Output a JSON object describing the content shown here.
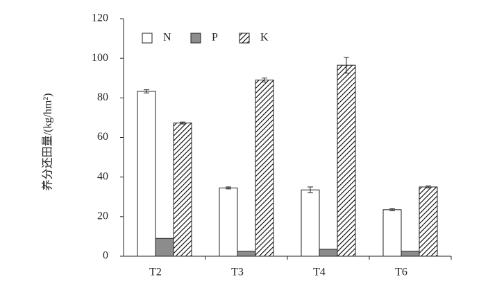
{
  "chart_data": {
    "type": "bar",
    "y_label": "养分还田量/(kg/hm²)",
    "categories": [
      "T2",
      "T3",
      "T4",
      "T6"
    ],
    "series": [
      {
        "name": "N",
        "color": "#ffffff",
        "hatched": false,
        "values": [
          83.3,
          34.5,
          33.5,
          23.5
        ],
        "errors": [
          0.8,
          0.5,
          1.5,
          0.5
        ]
      },
      {
        "name": "P",
        "color": "#8c8c8c",
        "hatched": false,
        "values": [
          9,
          2.5,
          3.5,
          2.5
        ]
      },
      {
        "name": "K",
        "color": "#555555",
        "hatched": true,
        "values": [
          67.3,
          89,
          96.5,
          35
        ],
        "errors": [
          0.5,
          1,
          4,
          0.5
        ]
      }
    ],
    "ylim": [
      0,
      120
    ],
    "yticks": [
      0,
      20,
      40,
      60,
      80,
      100,
      120
    ],
    "legend": "top-left"
  }
}
